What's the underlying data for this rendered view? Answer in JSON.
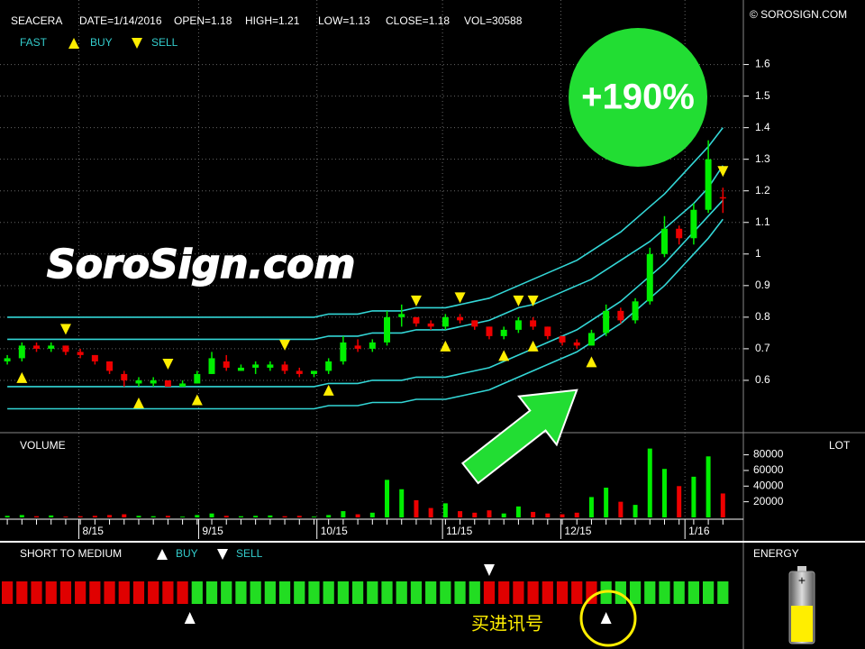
{
  "header": {
    "symbol": "SEACERA",
    "date": "DATE=1/14/2016",
    "open": "OPEN=1.18",
    "high": "HIGH=1.21",
    "low": "LOW=1.13",
    "close": "CLOSE=1.18",
    "vol": "VOL=30588",
    "copyright": "© SOROSIGN.COM"
  },
  "annotations": {
    "gain": "+190%",
    "watermark": "SoroSign.com",
    "signal_note": "买进讯号",
    "energy": "ENERGY"
  },
  "chart_data": [
    {
      "type": "candlestick",
      "legend": {
        "title": "FAST",
        "buy": "BUY",
        "sell": "SELL"
      },
      "up_color": "#00ee00",
      "down_color": "#ee0000",
      "marker_color": "#ffee00",
      "band_color": "#33d6d6",
      "grid": true,
      "ylim": [
        0.44,
        1.79
      ],
      "yticks": [
        0.6,
        0.7,
        0.8,
        0.9,
        1,
        1.1,
        1.2,
        1.3,
        1.4,
        1.5,
        1.6
      ],
      "xlim": [
        -0.5,
        50.4
      ],
      "xticks": [
        {
          "value": 4.9,
          "label": "8/15"
        },
        {
          "value": 13.1,
          "label": "9/15"
        },
        {
          "value": 21.2,
          "label": "10/15"
        },
        {
          "value": 29.8,
          "label": "11/15"
        },
        {
          "value": 37.9,
          "label": "12/15"
        },
        {
          "value": 46.4,
          "label": "1/16"
        }
      ],
      "ohlc": [
        [
          0.66,
          0.68,
          0.65,
          0.67
        ],
        [
          0.67,
          0.72,
          0.66,
          0.71
        ],
        [
          0.71,
          0.72,
          0.69,
          0.7
        ],
        [
          0.7,
          0.72,
          0.69,
          0.71
        ],
        [
          0.71,
          0.71,
          0.68,
          0.69
        ],
        [
          0.69,
          0.7,
          0.67,
          0.68
        ],
        [
          0.68,
          0.68,
          0.65,
          0.66
        ],
        [
          0.66,
          0.66,
          0.62,
          0.63
        ],
        [
          0.62,
          0.63,
          0.58,
          0.6
        ],
        [
          0.59,
          0.61,
          0.58,
          0.6
        ],
        [
          0.59,
          0.61,
          0.58,
          0.6
        ],
        [
          0.6,
          0.6,
          0.58,
          0.58
        ],
        [
          0.58,
          0.6,
          0.58,
          0.59
        ],
        [
          0.59,
          0.63,
          0.59,
          0.62
        ],
        [
          0.62,
          0.69,
          0.62,
          0.67
        ],
        [
          0.66,
          0.68,
          0.63,
          0.64
        ],
        [
          0.63,
          0.65,
          0.63,
          0.64
        ],
        [
          0.64,
          0.66,
          0.62,
          0.65
        ],
        [
          0.64,
          0.66,
          0.63,
          0.65
        ],
        [
          0.65,
          0.66,
          0.62,
          0.63
        ],
        [
          0.63,
          0.64,
          0.61,
          0.62
        ],
        [
          0.62,
          0.63,
          0.61,
          0.63
        ],
        [
          0.63,
          0.67,
          0.62,
          0.66
        ],
        [
          0.66,
          0.74,
          0.65,
          0.72
        ],
        [
          0.71,
          0.73,
          0.69,
          0.7
        ],
        [
          0.7,
          0.73,
          0.69,
          0.72
        ],
        [
          0.72,
          0.82,
          0.71,
          0.8
        ],
        [
          0.8,
          0.84,
          0.77,
          0.81
        ],
        [
          0.8,
          0.8,
          0.77,
          0.78
        ],
        [
          0.78,
          0.79,
          0.76,
          0.77
        ],
        [
          0.77,
          0.81,
          0.76,
          0.8
        ],
        [
          0.8,
          0.81,
          0.78,
          0.79
        ],
        [
          0.79,
          0.79,
          0.76,
          0.77
        ],
        [
          0.77,
          0.77,
          0.73,
          0.74
        ],
        [
          0.74,
          0.77,
          0.73,
          0.76
        ],
        [
          0.76,
          0.8,
          0.75,
          0.79
        ],
        [
          0.79,
          0.8,
          0.76,
          0.77
        ],
        [
          0.77,
          0.77,
          0.73,
          0.74
        ],
        [
          0.74,
          0.74,
          0.71,
          0.72
        ],
        [
          0.72,
          0.73,
          0.7,
          0.71
        ],
        [
          0.71,
          0.76,
          0.71,
          0.75
        ],
        [
          0.75,
          0.84,
          0.74,
          0.82
        ],
        [
          0.82,
          0.83,
          0.78,
          0.79
        ],
        [
          0.79,
          0.86,
          0.78,
          0.85
        ],
        [
          0.85,
          1.02,
          0.84,
          1.0
        ],
        [
          1.0,
          1.12,
          0.99,
          1.08
        ],
        [
          1.08,
          1.09,
          1.03,
          1.05
        ],
        [
          1.05,
          1.16,
          1.03,
          1.14
        ],
        [
          1.14,
          1.36,
          1.13,
          1.3
        ],
        [
          1.18,
          1.21,
          1.13,
          1.18
        ]
      ],
      "bands": [
        {
          "values": [
            0.8,
            0.8,
            0.8,
            0.8,
            0.8,
            0.8,
            0.8,
            0.8,
            0.8,
            0.8,
            0.8,
            0.8,
            0.8,
            0.8,
            0.8,
            0.8,
            0.8,
            0.8,
            0.8,
            0.8,
            0.8,
            0.8,
            0.81,
            0.81,
            0.81,
            0.82,
            0.82,
            0.82,
            0.83,
            0.83,
            0.83,
            0.84,
            0.85,
            0.86,
            0.88,
            0.9,
            0.92,
            0.94,
            0.96,
            0.98,
            1.01,
            1.04,
            1.07,
            1.11,
            1.15,
            1.19,
            1.24,
            1.29,
            1.34,
            1.4
          ]
        },
        {
          "values": [
            0.73,
            0.73,
            0.73,
            0.73,
            0.73,
            0.73,
            0.73,
            0.73,
            0.73,
            0.73,
            0.73,
            0.73,
            0.73,
            0.73,
            0.73,
            0.73,
            0.73,
            0.73,
            0.73,
            0.73,
            0.73,
            0.73,
            0.74,
            0.74,
            0.74,
            0.75,
            0.75,
            0.75,
            0.76,
            0.76,
            0.76,
            0.77,
            0.78,
            0.79,
            0.81,
            0.83,
            0.84,
            0.86,
            0.88,
            0.9,
            0.92,
            0.95,
            0.98,
            1.01,
            1.04,
            1.08,
            1.12,
            1.16,
            1.21,
            1.28
          ]
        },
        {
          "values": [
            0.58,
            0.58,
            0.58,
            0.58,
            0.58,
            0.58,
            0.58,
            0.58,
            0.58,
            0.58,
            0.58,
            0.58,
            0.58,
            0.58,
            0.58,
            0.58,
            0.58,
            0.58,
            0.58,
            0.58,
            0.58,
            0.58,
            0.59,
            0.59,
            0.59,
            0.6,
            0.6,
            0.6,
            0.61,
            0.61,
            0.61,
            0.62,
            0.63,
            0.64,
            0.66,
            0.68,
            0.7,
            0.72,
            0.74,
            0.76,
            0.79,
            0.82,
            0.85,
            0.89,
            0.93,
            0.97,
            1.02,
            1.07,
            1.12,
            1.17
          ]
        },
        {
          "values": [
            0.51,
            0.51,
            0.51,
            0.51,
            0.51,
            0.51,
            0.51,
            0.51,
            0.51,
            0.51,
            0.51,
            0.51,
            0.51,
            0.51,
            0.51,
            0.51,
            0.51,
            0.51,
            0.51,
            0.51,
            0.51,
            0.51,
            0.52,
            0.52,
            0.52,
            0.53,
            0.53,
            0.53,
            0.54,
            0.54,
            0.54,
            0.55,
            0.56,
            0.57,
            0.59,
            0.61,
            0.63,
            0.65,
            0.67,
            0.69,
            0.72,
            0.75,
            0.78,
            0.82,
            0.86,
            0.9,
            0.95,
            1.0,
            1.05,
            1.11
          ]
        }
      ],
      "buy_markers": [
        1,
        9,
        13,
        22,
        30,
        34,
        36,
        40
      ],
      "sell_markers": [
        4,
        11,
        19,
        28,
        31,
        35,
        36,
        49
      ]
    },
    {
      "type": "bar",
      "title": "VOLUME",
      "unit_label": "LOT",
      "ylim": [
        0,
        106000
      ],
      "yticks": [
        20000,
        40000,
        60000,
        80000
      ],
      "values": [
        2000,
        3000,
        1500,
        2500,
        1000,
        1500,
        2000,
        3000,
        4000,
        2000,
        1500,
        2000,
        1000,
        3000,
        5000,
        2000,
        1500,
        2000,
        2500,
        1500,
        2000,
        1000,
        3000,
        8000,
        4000,
        6000,
        48000,
        36000,
        22000,
        12000,
        18000,
        8000,
        6000,
        9000,
        5000,
        14000,
        7000,
        5000,
        4000,
        6000,
        26000,
        38000,
        20000,
        16000,
        88000,
        62000,
        40000,
        52000,
        78000,
        30588
      ]
    },
    {
      "type": "signal",
      "title": "SHORT TO MEDIUM",
      "legend": {
        "buy": "BUY",
        "sell": "SELL"
      },
      "arrow_color": "#ffffff",
      "bar_colors": [
        "#e00000",
        "#e00000",
        "#e00000",
        "#e00000",
        "#e00000",
        "#e00000",
        "#e00000",
        "#e00000",
        "#e00000",
        "#e00000",
        "#e00000",
        "#e00000",
        "#e00000",
        "#22dd22",
        "#22dd22",
        "#22dd22",
        "#22dd22",
        "#22dd22",
        "#22dd22",
        "#22dd22",
        "#22dd22",
        "#22dd22",
        "#22dd22",
        "#22dd22",
        "#22dd22",
        "#22dd22",
        "#22dd22",
        "#22dd22",
        "#22dd22",
        "#22dd22",
        "#22dd22",
        "#22dd22",
        "#22dd22",
        "#e00000",
        "#e00000",
        "#e00000",
        "#e00000",
        "#e00000",
        "#e00000",
        "#e00000",
        "#e00000",
        "#22dd22",
        "#22dd22",
        "#22dd22",
        "#22dd22",
        "#22dd22",
        "#22dd22",
        "#22dd22",
        "#22dd22",
        "#22dd22"
      ],
      "buy_arrows": [
        12.5,
        41
      ],
      "sell_arrows": [
        33
      ]
    }
  ]
}
